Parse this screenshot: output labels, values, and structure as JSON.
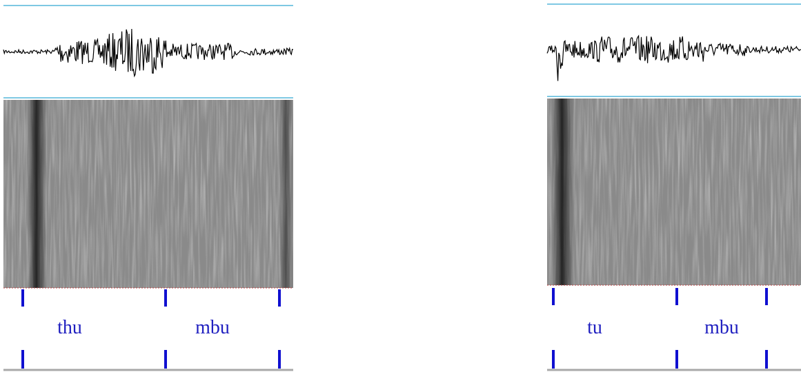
{
  "panels": [
    {
      "segments": [
        "thu",
        "mbu"
      ]
    },
    {
      "segments": [
        "tu",
        "mbu"
      ]
    }
  ]
}
